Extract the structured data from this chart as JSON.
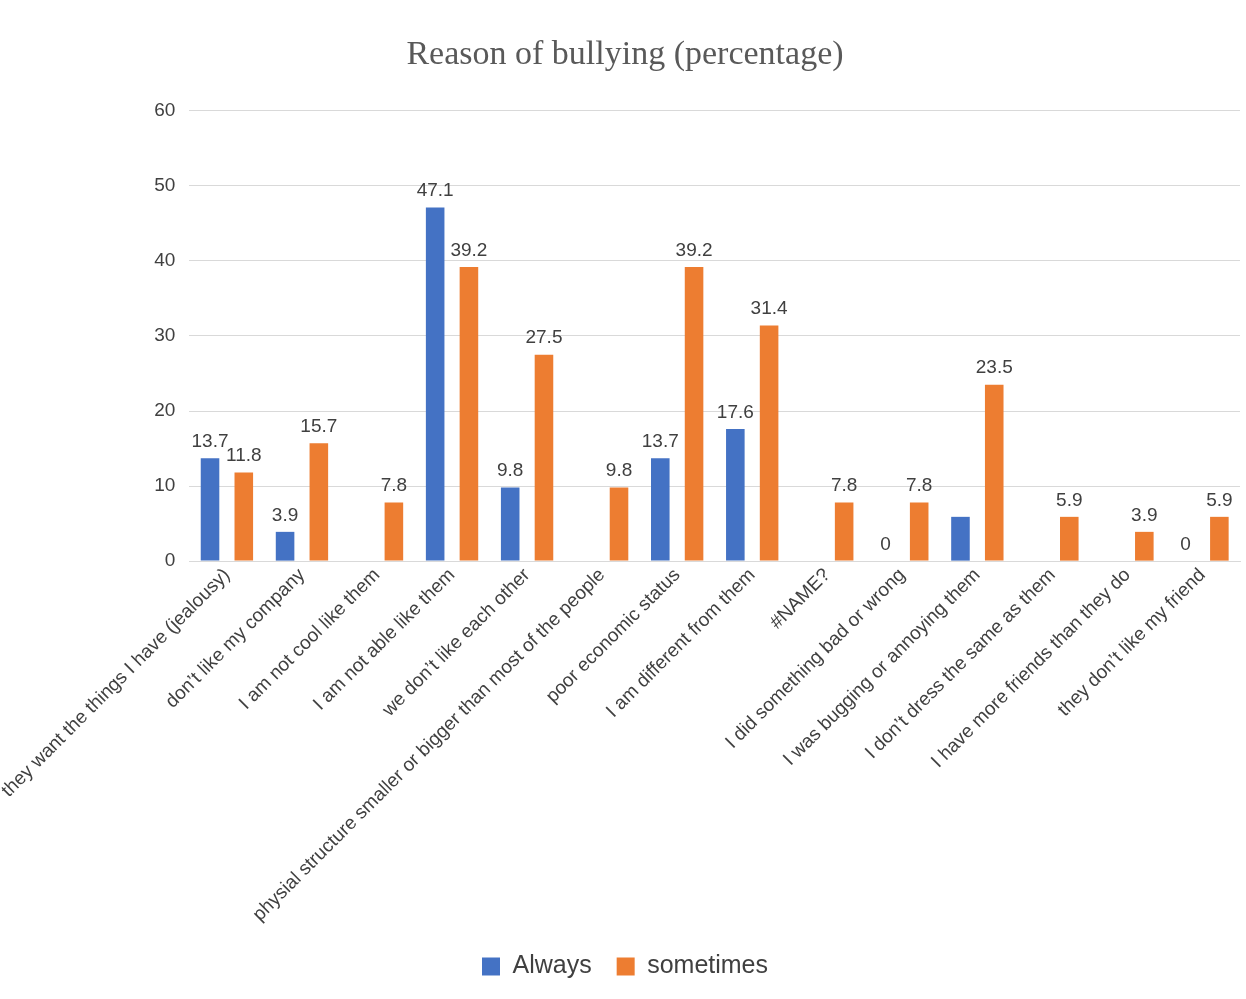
{
  "chart_data": {
    "type": "bar",
    "title": "Reason of bullying (percentage)",
    "categories": [
      "they want the things I have (jealousy)",
      "don’t like my company",
      "I am not cool like them",
      "I am not able like them",
      "we don’t like each other",
      "physial structure smaller or bigger than most of the people",
      "poor economic status",
      "I am different from them",
      "#NAME?",
      "I did something bad or wrong",
      "I was bugging or annoying them",
      "I don’t dress the same as them",
      "I have more friends than they do",
      "they don’t like my friend"
    ],
    "series": [
      {
        "name": "Always",
        "color": "#4472c4",
        "values": [
          13.7,
          3.9,
          null,
          47.1,
          9.8,
          null,
          13.7,
          17.6,
          null,
          0,
          5.9,
          null,
          null,
          0
        ],
        "value_labels": [
          "13.7",
          "3.9",
          null,
          "47.1",
          "9.8",
          null,
          "13.7",
          "17.6",
          null,
          "0",
          null,
          null,
          null,
          "0"
        ]
      },
      {
        "name": "sometimes",
        "color": "#ed7d31",
        "values": [
          11.8,
          15.7,
          7.8,
          39.2,
          27.5,
          9.8,
          39.2,
          31.4,
          7.8,
          7.8,
          23.5,
          5.9,
          3.9,
          5.9
        ],
        "value_labels": [
          "11.8",
          "15.7",
          "7.8",
          "39.2",
          "27.5",
          "9.8",
          "39.2",
          "31.4",
          "7.8",
          "7.8",
          "23.5",
          "5.9",
          "3.9",
          "5.9"
        ]
      }
    ],
    "ylim": [
      0,
      60
    ],
    "yticks": [
      0,
      10,
      20,
      30,
      40,
      50,
      60
    ],
    "grid": "y",
    "legend": "bottom"
  }
}
